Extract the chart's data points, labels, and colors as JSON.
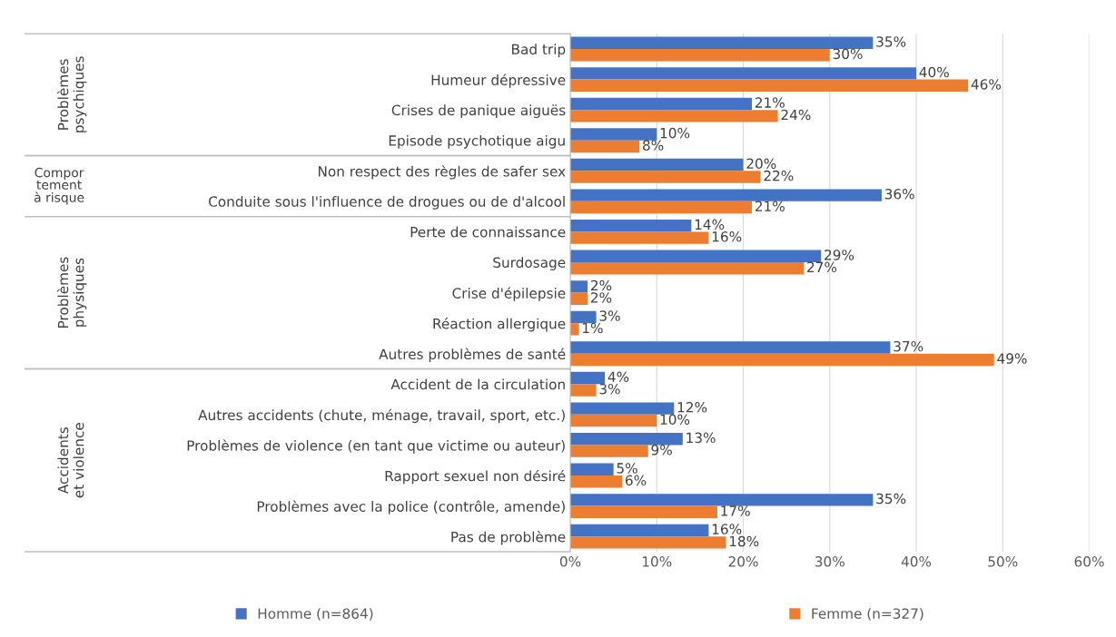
{
  "chart_data": {
    "type": "bar",
    "orientation": "horizontal",
    "categories": [
      "Bad trip",
      "Humeur dépressive",
      "Crises de panique aiguës",
      "Episode psychotique aigu",
      "Non respect des règles de safer sex",
      "Conduite sous l'influence de drogues ou de d'alcool",
      "Perte de connaissance",
      "Surdosage",
      "Crise d'épilepsie",
      "Réaction allergique",
      "Autres problèmes de santé",
      "Accident de la circulation",
      "Autres accidents (chute, ménage, travail, sport, etc.)",
      "Problèmes de violence (en tant que victime ou auteur)",
      "Rapport sexuel non désiré",
      "Problèmes avec la police (contrôle, amende)",
      "Pas de problème"
    ],
    "series": [
      {
        "name": "Homme (n=864)",
        "color": "#4472c4",
        "values": [
          35,
          40,
          21,
          10,
          20,
          36,
          14,
          29,
          2,
          3,
          37,
          4,
          12,
          13,
          5,
          35,
          16
        ],
        "value_labels": [
          "35%",
          "40%",
          "21%",
          "10%",
          "20%",
          "36%",
          "14%",
          "29%",
          "2%",
          "3%",
          "37%",
          "4%",
          "12%",
          "13%",
          "5%",
          "35%",
          "16%"
        ]
      },
      {
        "name": "Femme (n=327)",
        "color": "#ed7d31",
        "values": [
          30,
          46,
          24,
          8,
          22,
          21,
          16,
          27,
          2,
          1,
          49,
          3,
          10,
          9,
          6,
          17,
          18
        ],
        "value_labels": [
          "30%",
          "46%",
          "24%",
          "8%",
          "22%",
          "21%",
          "16%",
          "27%",
          "2%",
          "1%",
          "49%",
          "3%",
          "10%",
          "9%",
          "6%",
          "17%",
          "18%"
        ]
      }
    ],
    "annotations": [
      "Problèmes psychiques",
      "Comportement à risque",
      "Problèmes physiques",
      "Accidents et violence"
    ],
    "xlim": [
      0,
      60
    ],
    "xticks": [
      {
        "value": 0,
        "label": "0%"
      },
      {
        "value": 10,
        "label": "10%"
      },
      {
        "value": 20,
        "label": "20%"
      },
      {
        "value": 30,
        "label": "30%"
      },
      {
        "value": 40,
        "label": "40%"
      },
      {
        "value": 50,
        "label": "50%"
      },
      {
        "value": 60,
        "label": "60%"
      }
    ],
    "grid": "x",
    "legend": "bottom"
  }
}
